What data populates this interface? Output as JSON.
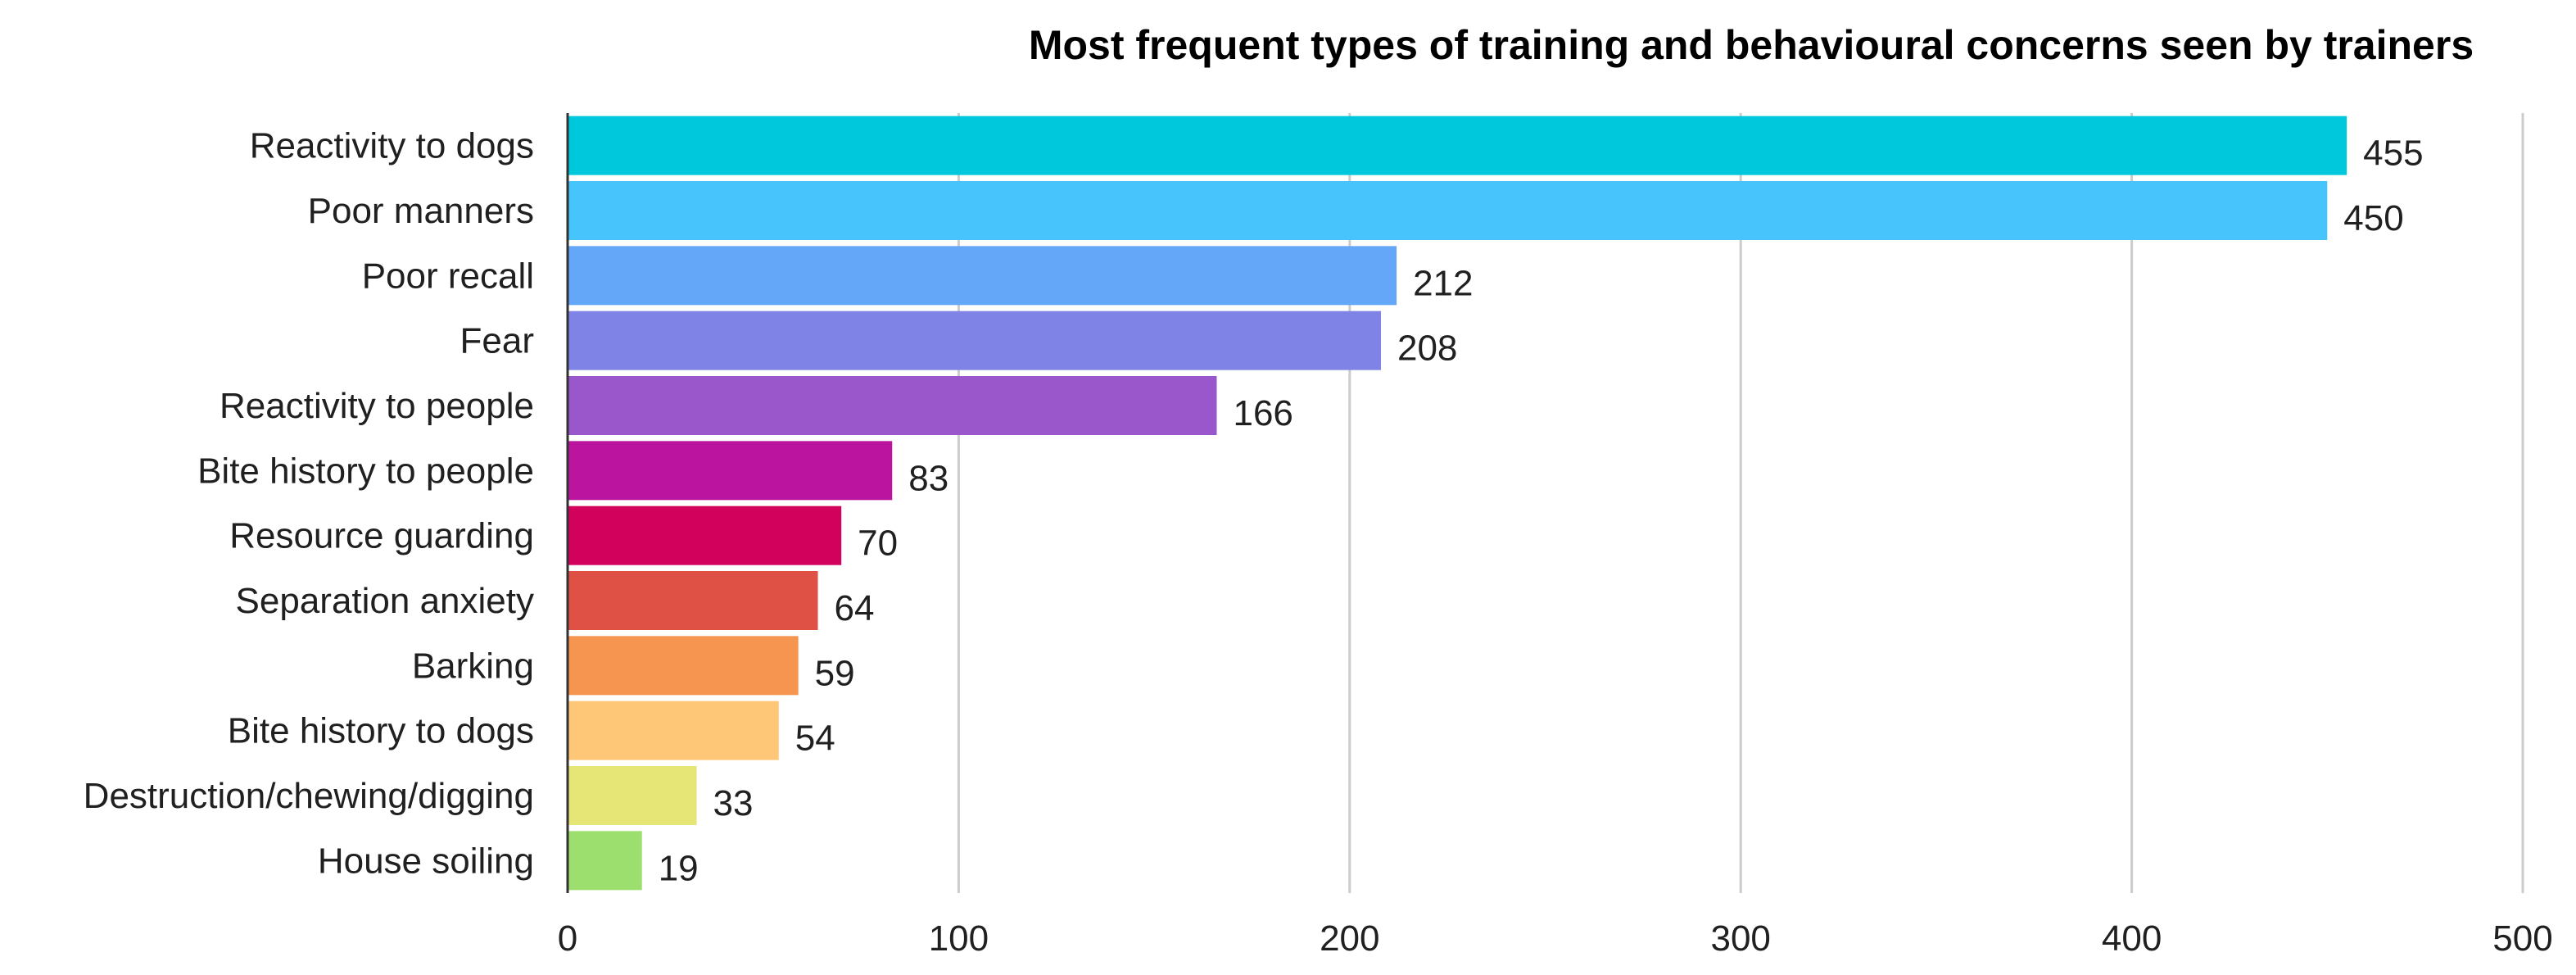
{
  "chart_data": {
    "type": "bar",
    "orientation": "horizontal",
    "title": "Most frequent types of training and behavioural concerns seen by trainers",
    "xlabel": "",
    "ylabel": "",
    "xlim": [
      0,
      500
    ],
    "grid": true,
    "legend": "none",
    "categories": [
      "Reactivity to dogs",
      "Poor manners",
      "Poor recall",
      "Fear",
      "Reactivity to people",
      "Bite history to people",
      "Resource guarding",
      "Separation anxiety",
      "Barking",
      "Bite history to dogs",
      "Destruction/chewing/digging",
      "House soiling"
    ],
    "values": [
      455,
      450,
      212,
      208,
      166,
      83,
      70,
      64,
      59,
      54,
      33,
      19
    ],
    "value_labels": [
      "455",
      "450",
      "212",
      "208",
      "166",
      "83",
      "70",
      "64",
      "59",
      "54",
      "33",
      "19"
    ],
    "colors": [
      "#00c8dc",
      "#46c4fb",
      "#64a6f8",
      "#7f83e6",
      "#9a57cb",
      "#bb15a0",
      "#d2015b",
      "#df5144",
      "#f6954f",
      "#fec778",
      "#e5e676",
      "#9ddf6e"
    ],
    "ticks": [
      0,
      100,
      200,
      300,
      400,
      500
    ],
    "tick_labels": [
      "0",
      "100",
      "200",
      "300",
      "400",
      "500"
    ]
  }
}
